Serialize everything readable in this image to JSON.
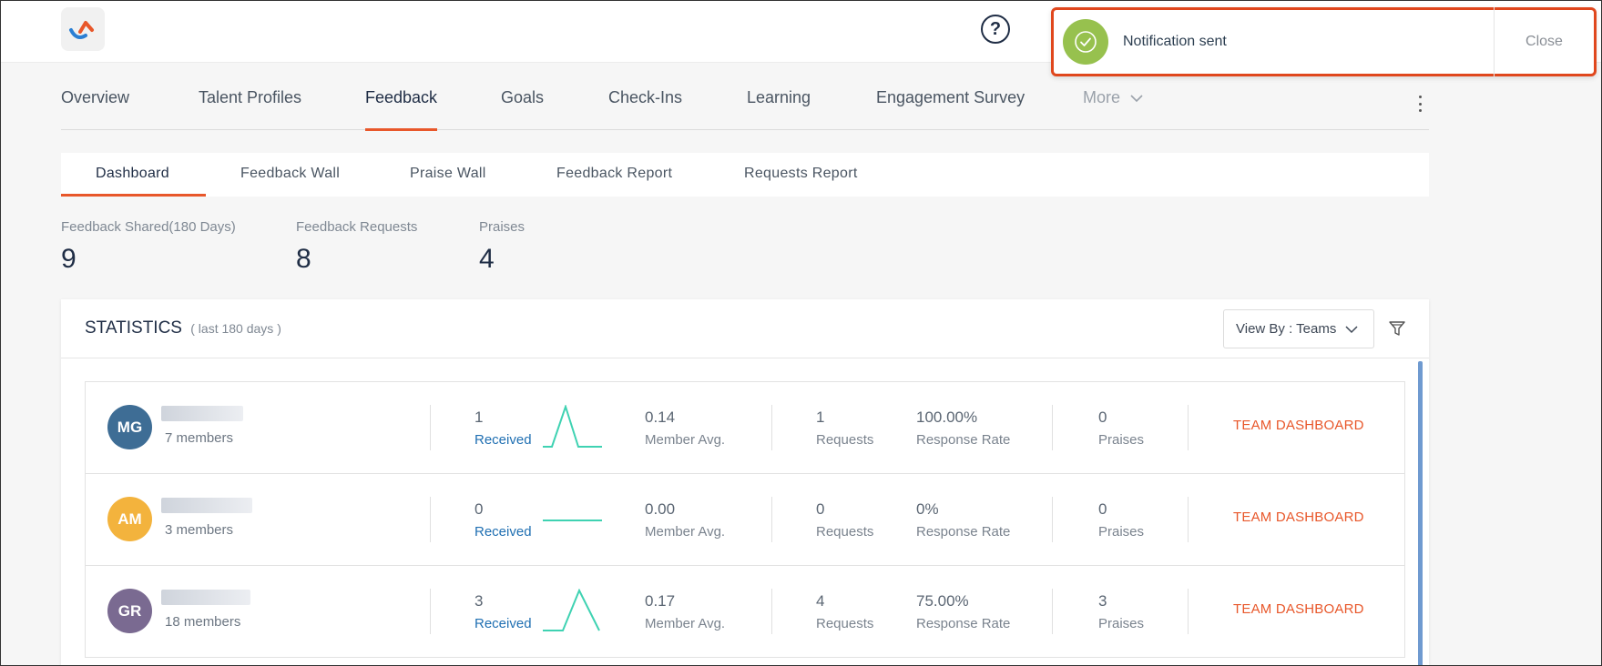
{
  "header": {
    "toast": {
      "message": "Notification sent",
      "close_label": "Close",
      "icon": "check-circle-icon",
      "color": "#97c14e",
      "border_color": "#e0471d"
    },
    "help_icon": "question-circle-icon"
  },
  "main_tabs": [
    {
      "label": "Overview"
    },
    {
      "label": "Talent Profiles"
    },
    {
      "label": "Feedback"
    },
    {
      "label": "Goals"
    },
    {
      "label": "Check-Ins"
    },
    {
      "label": "Learning"
    },
    {
      "label": "Engagement Survey"
    },
    {
      "label": "More"
    }
  ],
  "active_main_tab": "Feedback",
  "sub_tabs": [
    {
      "label": "Dashboard"
    },
    {
      "label": "Feedback Wall"
    },
    {
      "label": "Praise Wall"
    },
    {
      "label": "Feedback Report"
    },
    {
      "label": "Requests Report"
    }
  ],
  "active_sub_tab": "Dashboard",
  "summary": [
    {
      "label": "Feedback Shared(180 Days)",
      "value": "9"
    },
    {
      "label": "Feedback Requests",
      "value": "8"
    },
    {
      "label": "Praises",
      "value": "4"
    }
  ],
  "statistics": {
    "title": "STATISTICS",
    "subtitle": "( last 180 days )",
    "view_by_label": "View By : Teams",
    "teams": [
      {
        "initials": "MG",
        "avatar_color": "#3e6d95",
        "members": "7 members",
        "received": "1",
        "received_label": "Received",
        "spark": [
          0,
          1,
          0
        ],
        "member_avg": "0.14",
        "member_avg_label": "Member Avg.",
        "requests": "1",
        "requests_label": "Requests",
        "response_rate": "100.00%",
        "response_rate_label": "Response Rate",
        "praises": "0",
        "praises_label": "Praises",
        "action": "TEAM DASHBOARD"
      },
      {
        "initials": "AM",
        "avatar_color": "#f3b33d",
        "members": "3 members",
        "received": "0",
        "received_label": "Received",
        "spark": [
          0,
          0,
          0
        ],
        "member_avg": "0.00",
        "member_avg_label": "Member Avg.",
        "requests": "0",
        "requests_label": "Requests",
        "response_rate": "0%",
        "response_rate_label": "Response Rate",
        "praises": "0",
        "praises_label": "Praises",
        "action": "TEAM DASHBOARD"
      },
      {
        "initials": "GR",
        "avatar_color": "#7a6a91",
        "members": "18 members",
        "received": "3",
        "received_label": "Received",
        "spark": [
          0,
          3,
          0
        ],
        "member_avg": "0.17",
        "member_avg_label": "Member Avg.",
        "requests": "4",
        "requests_label": "Requests",
        "response_rate": "75.00%",
        "response_rate_label": "Response Rate",
        "praises": "3",
        "praises_label": "Praises",
        "action": "TEAM DASHBOARD"
      }
    ]
  }
}
